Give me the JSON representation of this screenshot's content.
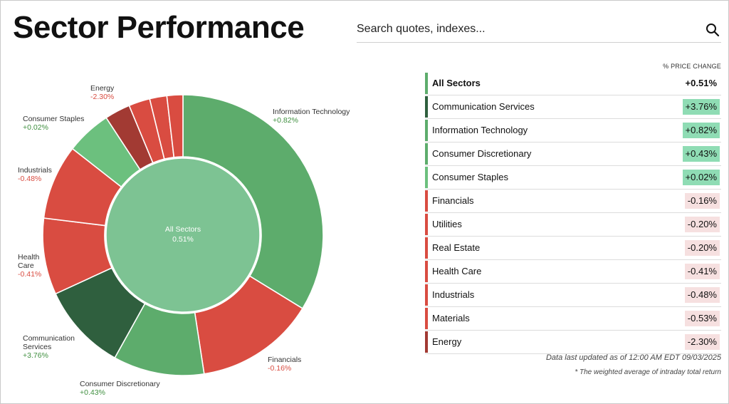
{
  "header": {
    "title": "Sector Performance",
    "search_placeholder": "Search quotes, indexes..."
  },
  "colors": {
    "dark_green": "#2f5f3e",
    "green": "#5dac6c",
    "light_green": "#6cc07e",
    "center_green": "#7dc393",
    "red": "#d94c41",
    "dark_red": "#a23a33",
    "pos_bg": "#7fd4a5",
    "neg_bg": "#f4dede"
  },
  "table": {
    "header": "% PRICE CHANGE",
    "rows": [
      {
        "name": "All Sectors",
        "value": "+0.51%",
        "bar": "#5dac6c",
        "bg": "transparent"
      },
      {
        "name": "Communication Services",
        "value": "+3.76%",
        "bar": "#2f5f3e",
        "bg": "#8fdcb4"
      },
      {
        "name": "Information Technology",
        "value": "+0.82%",
        "bar": "#5dac6c",
        "bg": "#8fdcb4"
      },
      {
        "name": "Consumer Discretionary",
        "value": "+0.43%",
        "bar": "#5dac6c",
        "bg": "#8fdcb4"
      },
      {
        "name": "Consumer Staples",
        "value": "+0.02%",
        "bar": "#6cc07e",
        "bg": "#8fdcb4"
      },
      {
        "name": "Financials",
        "value": "-0.16%",
        "bar": "#d94c41",
        "bg": "#f6e0e0"
      },
      {
        "name": "Utilities",
        "value": "-0.20%",
        "bar": "#d94c41",
        "bg": "#f6e0e0"
      },
      {
        "name": "Real Estate",
        "value": "-0.20%",
        "bar": "#d94c41",
        "bg": "#f6e0e0"
      },
      {
        "name": "Health Care",
        "value": "-0.41%",
        "bar": "#d94c41",
        "bg": "#f6e0e0"
      },
      {
        "name": "Industrials",
        "value": "-0.48%",
        "bar": "#d94c41",
        "bg": "#f6e0e0"
      },
      {
        "name": "Materials",
        "value": "-0.53%",
        "bar": "#d94c41",
        "bg": "#f6e0e0"
      },
      {
        "name": "Energy",
        "value": "-2.30%",
        "bar": "#a23a33",
        "bg": "#f6e0e0"
      }
    ],
    "note_updated": "Data last updated as of 12:00 AM EDT 09/03/2025",
    "note_weighted": "* The weighted average of intraday total return"
  },
  "chart_data": {
    "type": "pie",
    "center": {
      "label": "All Sectors",
      "value": "0.51%"
    },
    "slices": [
      {
        "name": "Information Technology",
        "change": "+0.82%",
        "share": 0.3396,
        "color": "#5dac6c",
        "labeled": true
      },
      {
        "name": "Financials",
        "change": "-0.16%",
        "share": 0.1392,
        "color": "#d94c41",
        "labeled": true
      },
      {
        "name": "Consumer Discretionary",
        "change": "+0.43%",
        "share": 0.1056,
        "color": "#5dac6c",
        "labeled": true
      },
      {
        "name": "Communication Services",
        "change": "+3.76%",
        "share": 0.1012,
        "color": "#2f5f3e",
        "labeled": true
      },
      {
        "name": "Health Care",
        "change": "-0.41%",
        "share": 0.0886,
        "color": "#d94c41",
        "labeled": true
      },
      {
        "name": "Industrials",
        "change": "-0.48%",
        "share": 0.0867,
        "color": "#d94c41",
        "labeled": true
      },
      {
        "name": "Consumer Staples",
        "change": "+0.02%",
        "share": 0.0525,
        "color": "#6cc07e",
        "labeled": true
      },
      {
        "name": "Energy",
        "change": "-2.30%",
        "share": 0.0297,
        "color": "#a23a33",
        "labeled": true
      },
      {
        "name": "Utilities",
        "change": "-0.20%",
        "share": 0.0247,
        "color": "#d94c41",
        "labeled": false
      },
      {
        "name": "Real Estate",
        "change": "-0.20%",
        "share": 0.0199,
        "color": "#d94c41",
        "labeled": false
      },
      {
        "name": "Materials",
        "change": "-0.53%",
        "share": 0.0185,
        "color": "#d94c41",
        "labeled": false
      }
    ]
  }
}
